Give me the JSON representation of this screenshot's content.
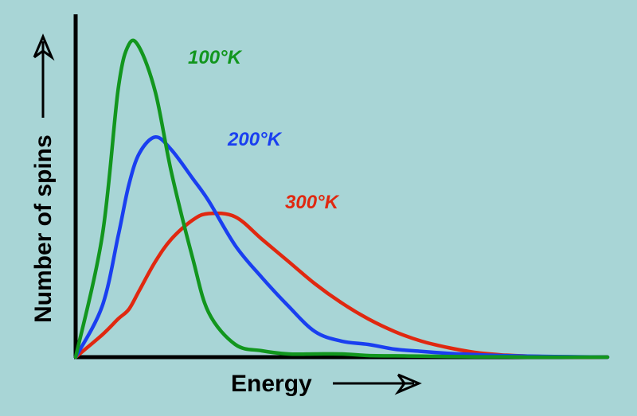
{
  "chart_data": {
    "type": "line",
    "xlabel": "Energy",
    "ylabel": "Number of spins",
    "xlim": [
      0,
      10
    ],
    "ylim": [
      0,
      1
    ],
    "grid": false,
    "legend": "inline labels near curve peaks",
    "ticks": false,
    "x": [
      0,
      0.5,
      0.8,
      1.0,
      1.2,
      1.5,
      1.8,
      2.2,
      2.5,
      3.0,
      3.5,
      4.0,
      4.5,
      5.0,
      5.5,
      6.0,
      6.5,
      7.0,
      7.5,
      8.0,
      8.5,
      9.0,
      9.5,
      10.0
    ],
    "series": [
      {
        "name": "100°K",
        "color": "#12961e",
        "values": [
          0,
          0.38,
          0.84,
          0.98,
          0.97,
          0.83,
          0.58,
          0.31,
          0.14,
          0.04,
          0.02,
          0.01,
          0.01,
          0.01,
          0.005,
          0.004,
          0.003,
          0.002,
          0.001,
          0.001,
          0.0,
          0.0,
          0.0,
          0.0
        ]
      },
      {
        "name": "200°K",
        "color": "#1a3ff0",
        "values": [
          0,
          0.16,
          0.38,
          0.54,
          0.64,
          0.69,
          0.65,
          0.56,
          0.49,
          0.35,
          0.25,
          0.16,
          0.08,
          0.05,
          0.04,
          0.025,
          0.018,
          0.012,
          0.008,
          0.005,
          0.003,
          0.002,
          0.001,
          0.0
        ]
      },
      {
        "name": "300°K",
        "color": "#e02810",
        "values": [
          0,
          0.07,
          0.12,
          0.15,
          0.21,
          0.3,
          0.37,
          0.43,
          0.45,
          0.44,
          0.37,
          0.3,
          0.23,
          0.17,
          0.12,
          0.08,
          0.05,
          0.03,
          0.015,
          0.007,
          0.003,
          0.001,
          0.0,
          0.0
        ]
      }
    ],
    "colors": {
      "background": "#a8d5d6",
      "axis": "#000000"
    }
  }
}
